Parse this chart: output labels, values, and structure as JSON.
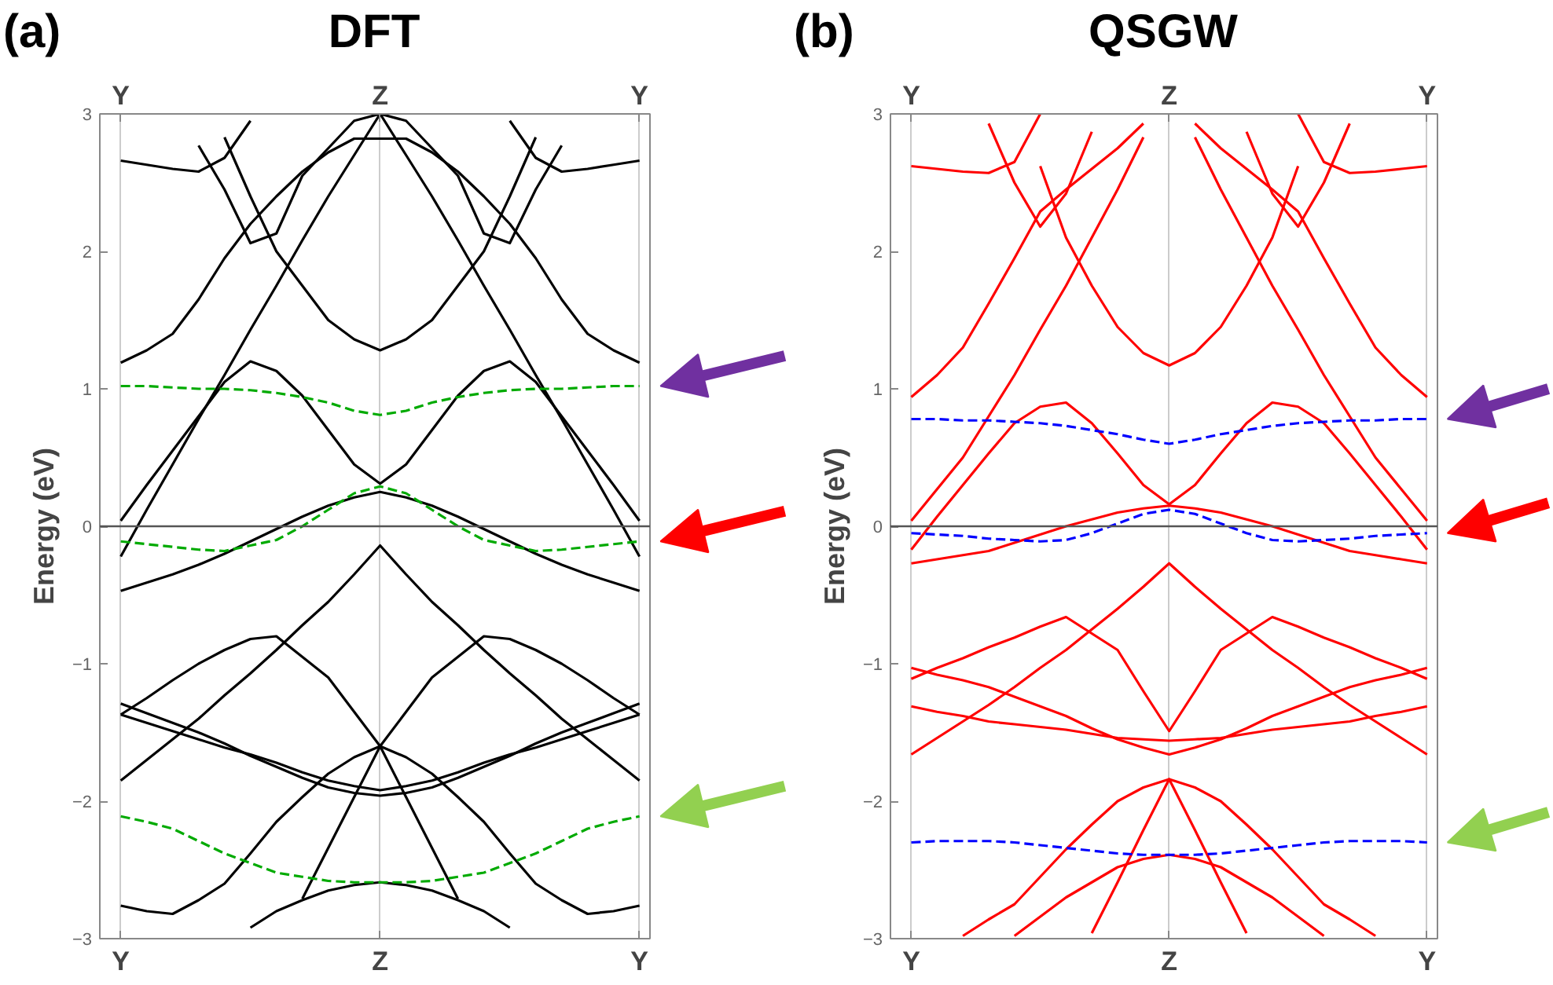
{
  "chart_data": [
    {
      "type": "line",
      "title": "DFT",
      "ylabel": "Energy (eV)",
      "annotations": [
        "(a)"
      ],
      "categories": [
        "Y",
        null,
        null,
        null,
        null,
        null,
        null,
        null,
        null,
        null,
        "Z",
        null,
        null,
        null,
        null,
        null,
        null,
        null,
        null,
        null,
        "Y"
      ],
      "ylim": [
        -3,
        3
      ],
      "yticks": [
        {
          "value": -3,
          "label": "−3"
        },
        {
          "value": -2,
          "label": "−2"
        },
        {
          "value": -1,
          "label": "−1"
        },
        0,
        1,
        2,
        3
      ],
      "grid": "x",
      "ref_lines": [
        {
          "axis": "y",
          "value": 0,
          "color": "#555555"
        }
      ],
      "series": [
        {
          "color": "#000000",
          "values": [
            2.66,
            2.63,
            2.6,
            2.58,
            2.68,
            2.95,
            null,
            null,
            null,
            null,
            null,
            null,
            null,
            null,
            null,
            2.95,
            2.68,
            2.58,
            2.6,
            2.63,
            2.66
          ]
        },
        {
          "color": "#000000",
          "values": [
            null,
            null,
            null,
            2.77,
            2.45,
            2.06,
            2.13,
            2.55,
            2.75,
            2.95,
            3,
            2.95,
            2.75,
            2.55,
            2.13,
            2.06,
            2.45,
            2.77,
            null,
            null,
            null
          ]
        },
        {
          "color": "#000000",
          "values": [
            null,
            null,
            null,
            null,
            2.83,
            2.4,
            2.0,
            1.75,
            1.5,
            1.36,
            1.28,
            1.36,
            1.5,
            1.75,
            2.0,
            2.4,
            2.83,
            null,
            null,
            null,
            null
          ]
        },
        {
          "color": "#000000",
          "values": [
            1.19,
            1.28,
            1.4,
            1.65,
            1.95,
            2.2,
            2.4,
            2.58,
            2.72,
            2.82,
            2.82,
            2.82,
            2.72,
            2.58,
            2.4,
            2.2,
            1.95,
            1.65,
            1.4,
            1.28,
            1.19
          ]
        },
        {
          "color": "#000000",
          "values": [
            -0.22,
            0.12,
            0.45,
            0.78,
            1.1,
            1.43,
            1.75,
            2.08,
            2.4,
            2.7,
            3,
            2.7,
            2.4,
            2.08,
            1.75,
            1.43,
            1.1,
            0.78,
            0.45,
            0.12,
            -0.22
          ]
        },
        {
          "color": "#000000",
          "values": [
            0.04,
            0.3,
            0.55,
            0.8,
            1.05,
            1.2,
            1.13,
            0.95,
            0.7,
            0.45,
            0.31,
            0.45,
            0.7,
            0.95,
            1.13,
            1.2,
            1.05,
            0.8,
            0.55,
            0.3,
            0.04
          ]
        },
        {
          "color": "#000000",
          "values": [
            -0.47,
            -0.41,
            -0.35,
            -0.28,
            -0.2,
            -0.11,
            -0.02,
            0.07,
            0.15,
            0.21,
            0.25,
            0.21,
            0.15,
            0.07,
            -0.02,
            -0.11,
            -0.2,
            -0.28,
            -0.35,
            -0.41,
            -0.47
          ]
        },
        {
          "color": "#000000",
          "values": [
            -1.85,
            -1.7,
            -1.55,
            -1.4,
            -1.23,
            -1.07,
            -0.9,
            -0.72,
            -0.55,
            -0.35,
            -0.14,
            -0.35,
            -0.55,
            -0.72,
            -0.9,
            -1.07,
            -1.23,
            -1.4,
            -1.55,
            -1.7,
            -1.85
          ]
        },
        {
          "color": "#000000",
          "values": [
            -1.37,
            -1.25,
            -1.12,
            -1.0,
            -0.9,
            -0.82,
            -0.8,
            -0.95,
            -1.1,
            -1.35,
            -1.6,
            -1.35,
            -1.1,
            -0.95,
            -0.8,
            -0.82,
            -0.9,
            -1.0,
            -1.12,
            -1.25,
            -1.37
          ]
        },
        {
          "color": "#000000",
          "values": [
            -1.29,
            -1.36,
            -1.43,
            -1.5,
            -1.58,
            -1.67,
            -1.75,
            -1.83,
            -1.9,
            -1.94,
            -1.96,
            -1.94,
            -1.9,
            -1.83,
            -1.75,
            -1.67,
            -1.58,
            -1.5,
            -1.43,
            -1.36,
            -1.29
          ]
        },
        {
          "color": "#000000",
          "values": [
            -1.37,
            -1.43,
            -1.49,
            -1.55,
            -1.61,
            -1.66,
            -1.72,
            -1.79,
            -1.85,
            -1.89,
            -1.92,
            -1.89,
            -1.85,
            -1.79,
            -1.72,
            -1.66,
            -1.61,
            -1.55,
            -1.49,
            -1.43,
            -1.37
          ]
        },
        {
          "color": "#000000",
          "values": [
            null,
            null,
            null,
            null,
            null,
            null,
            null,
            -2.71,
            -2.34,
            -1.97,
            -1.6,
            -1.97,
            -2.34,
            -2.71,
            null,
            null,
            null,
            null,
            null,
            null,
            null
          ]
        },
        {
          "color": "#000000",
          "values": [
            -2.76,
            -2.8,
            -2.82,
            -2.72,
            -2.6,
            -2.38,
            -2.15,
            -1.97,
            -1.8,
            -1.68,
            -1.6,
            -1.68,
            -1.8,
            -1.97,
            -2.15,
            -2.38,
            -2.6,
            -2.72,
            -2.82,
            -2.8,
            -2.76
          ]
        },
        {
          "color": "#000000",
          "values": [
            null,
            null,
            null,
            null,
            null,
            -2.92,
            -2.8,
            -2.72,
            -2.65,
            -2.61,
            -2.59,
            -2.61,
            -2.65,
            -2.72,
            -2.8,
            -2.92,
            null,
            null,
            null,
            null,
            null
          ]
        },
        {
          "color": "#00aa00",
          "line_style": "dashed",
          "values": [
            1.02,
            1.02,
            1.01,
            1.0,
            1.0,
            0.99,
            0.97,
            0.94,
            0.9,
            0.84,
            0.81,
            0.84,
            0.9,
            0.94,
            0.97,
            0.99,
            1.0,
            1.0,
            1.01,
            1.02,
            1.02
          ]
        },
        {
          "color": "#00aa00",
          "line_style": "dashed",
          "values": [
            -0.11,
            -0.13,
            -0.15,
            -0.17,
            -0.18,
            -0.14,
            -0.1,
            0.0,
            0.12,
            0.24,
            0.29,
            0.24,
            0.12,
            0.0,
            -0.1,
            -0.14,
            -0.18,
            -0.17,
            -0.15,
            -0.13,
            -0.11
          ]
        },
        {
          "color": "#00aa00",
          "line_style": "dashed",
          "values": [
            -2.11,
            -2.15,
            -2.2,
            -2.29,
            -2.38,
            -2.45,
            -2.52,
            -2.55,
            -2.58,
            -2.59,
            -2.59,
            -2.59,
            -2.58,
            -2.55,
            -2.52,
            -2.45,
            -2.38,
            -2.29,
            -2.2,
            -2.15,
            -2.11
          ]
        }
      ]
    },
    {
      "type": "line",
      "title": "QSGW",
      "ylabel": "Energy (eV)",
      "annotations": [
        "(b)"
      ],
      "categories": [
        "Y",
        null,
        null,
        null,
        null,
        null,
        null,
        null,
        null,
        null,
        "Z",
        null,
        null,
        null,
        null,
        null,
        null,
        null,
        null,
        null,
        "Y"
      ],
      "ylim": [
        -3,
        3
      ],
      "yticks": [
        {
          "value": -3,
          "label": "−3"
        },
        {
          "value": -2,
          "label": "−2"
        },
        {
          "value": -1,
          "label": "−1"
        },
        0,
        1,
        2,
        3
      ],
      "grid": "x",
      "ref_lines": [
        {
          "axis": "y",
          "value": 0,
          "color": "#555555"
        }
      ],
      "series": [
        {
          "color": "#ff0000",
          "values": [
            2.62,
            2.6,
            2.58,
            2.57,
            2.65,
            3,
            null,
            null,
            null,
            null,
            null,
            null,
            null,
            null,
            null,
            3,
            2.65,
            2.57,
            2.58,
            2.6,
            2.62
          ]
        },
        {
          "color": "#ff0000",
          "values": [
            null,
            null,
            null,
            2.93,
            2.5,
            2.18,
            2.42,
            2.87,
            null,
            null,
            null,
            null,
            null,
            2.87,
            2.42,
            2.18,
            2.5,
            2.93,
            null,
            null,
            null
          ]
        },
        {
          "color": "#ff0000",
          "values": [
            null,
            null,
            null,
            null,
            null,
            2.62,
            2.1,
            1.75,
            1.45,
            1.26,
            1.17,
            1.26,
            1.45,
            1.75,
            2.1,
            2.62,
            null,
            null,
            null,
            null,
            null
          ]
        },
        {
          "color": "#ff0000",
          "values": [
            0.94,
            1.1,
            1.3,
            1.62,
            1.95,
            2.29,
            2.45,
            2.6,
            2.75,
            2.93,
            null,
            2.93,
            2.75,
            2.6,
            2.45,
            2.29,
            1.95,
            1.62,
            1.3,
            1.1,
            0.94
          ]
        },
        {
          "color": "#ff0000",
          "values": [
            0.04,
            0.27,
            0.5,
            0.8,
            1.1,
            1.43,
            1.75,
            2.1,
            2.45,
            2.83,
            null,
            2.83,
            2.45,
            2.1,
            1.75,
            1.43,
            1.1,
            0.8,
            0.5,
            0.27,
            0.04
          ]
        },
        {
          "color": "#ff0000",
          "values": [
            -0.17,
            0.07,
            0.3,
            0.53,
            0.75,
            0.87,
            0.9,
            0.75,
            0.53,
            0.3,
            0.16,
            0.3,
            0.53,
            0.75,
            0.9,
            0.87,
            0.75,
            0.53,
            0.3,
            0.07,
            -0.17
          ]
        },
        {
          "color": "#ff0000",
          "values": [
            -0.27,
            -0.24,
            -0.21,
            -0.18,
            -0.12,
            -0.06,
            0.0,
            0.05,
            0.1,
            0.13,
            0.15,
            0.13,
            0.1,
            0.05,
            0.0,
            -0.06,
            -0.12,
            -0.18,
            -0.21,
            -0.24,
            -0.27
          ]
        },
        {
          "color": "#ff0000",
          "values": [
            -1.66,
            -1.54,
            -1.42,
            -1.3,
            -1.17,
            -1.03,
            -0.9,
            -0.75,
            -0.6,
            -0.44,
            -0.27,
            -0.44,
            -0.6,
            -0.75,
            -0.9,
            -1.03,
            -1.17,
            -1.3,
            -1.42,
            -1.54,
            -1.66
          ]
        },
        {
          "color": "#ff0000",
          "values": [
            -1.11,
            -1.03,
            -0.96,
            -0.88,
            -0.81,
            -0.73,
            -0.66,
            -0.78,
            -0.9,
            -1.2,
            -1.49,
            -1.2,
            -0.9,
            -0.78,
            -0.66,
            -0.73,
            -0.81,
            -0.88,
            -0.96,
            -1.03,
            -1.11
          ]
        },
        {
          "color": "#ff0000",
          "values": [
            -1.03,
            -1.08,
            -1.12,
            -1.17,
            -1.24,
            -1.31,
            -1.38,
            -1.47,
            -1.55,
            -1.61,
            -1.66,
            -1.61,
            -1.55,
            -1.47,
            -1.38,
            -1.31,
            -1.24,
            -1.17,
            -1.12,
            -1.08,
            -1.03
          ]
        },
        {
          "color": "#ff0000",
          "values": [
            -1.31,
            -1.35,
            -1.38,
            -1.42,
            -1.44,
            -1.46,
            -1.48,
            -1.51,
            -1.54,
            -1.55,
            -1.56,
            -1.55,
            -1.54,
            -1.51,
            -1.48,
            -1.46,
            -1.44,
            -1.42,
            -1.38,
            -1.35,
            -1.31
          ]
        },
        {
          "color": "#ff0000",
          "values": [
            null,
            null,
            -2.98,
            -2.86,
            -2.75,
            -2.55,
            -2.35,
            -2.17,
            -2.0,
            -1.9,
            -1.84,
            -1.9,
            -2.0,
            -2.17,
            -2.35,
            -2.55,
            -2.75,
            -2.86,
            -2.98,
            null,
            null
          ]
        },
        {
          "color": "#ff0000",
          "values": [
            null,
            null,
            null,
            null,
            null,
            null,
            null,
            -2.96,
            -2.59,
            -2.21,
            -1.84,
            -2.21,
            -2.59,
            -2.96,
            null,
            null,
            null,
            null,
            null,
            null,
            null
          ]
        },
        {
          "color": "#ff0000",
          "values": [
            null,
            null,
            null,
            null,
            -2.98,
            -2.84,
            -2.7,
            -2.59,
            -2.48,
            -2.42,
            -2.39,
            -2.42,
            -2.48,
            -2.59,
            -2.7,
            -2.84,
            -2.98,
            null,
            null,
            null,
            null
          ]
        },
        {
          "color": "#0000ff",
          "line_style": "dashed",
          "values": [
            0.78,
            0.78,
            0.77,
            0.77,
            0.76,
            0.75,
            0.73,
            0.7,
            0.67,
            0.63,
            0.6,
            0.63,
            0.67,
            0.7,
            0.73,
            0.75,
            0.76,
            0.77,
            0.77,
            0.78,
            0.78
          ]
        },
        {
          "color": "#0000ff",
          "line_style": "dashed",
          "values": [
            -0.05,
            -0.06,
            -0.07,
            -0.09,
            -0.1,
            -0.11,
            -0.1,
            -0.05,
            0.02,
            0.09,
            0.12,
            0.09,
            0.02,
            -0.05,
            -0.1,
            -0.11,
            -0.1,
            -0.09,
            -0.07,
            -0.06,
            -0.05
          ]
        },
        {
          "color": "#0000ff",
          "line_style": "dashed",
          "values": [
            -2.3,
            -2.29,
            -2.29,
            -2.29,
            -2.3,
            -2.32,
            -2.34,
            -2.36,
            -2.38,
            -2.39,
            -2.39,
            -2.39,
            -2.38,
            -2.36,
            -2.34,
            -2.32,
            -2.3,
            -2.29,
            -2.29,
            -2.29,
            -2.3
          ]
        }
      ]
    }
  ]
}
